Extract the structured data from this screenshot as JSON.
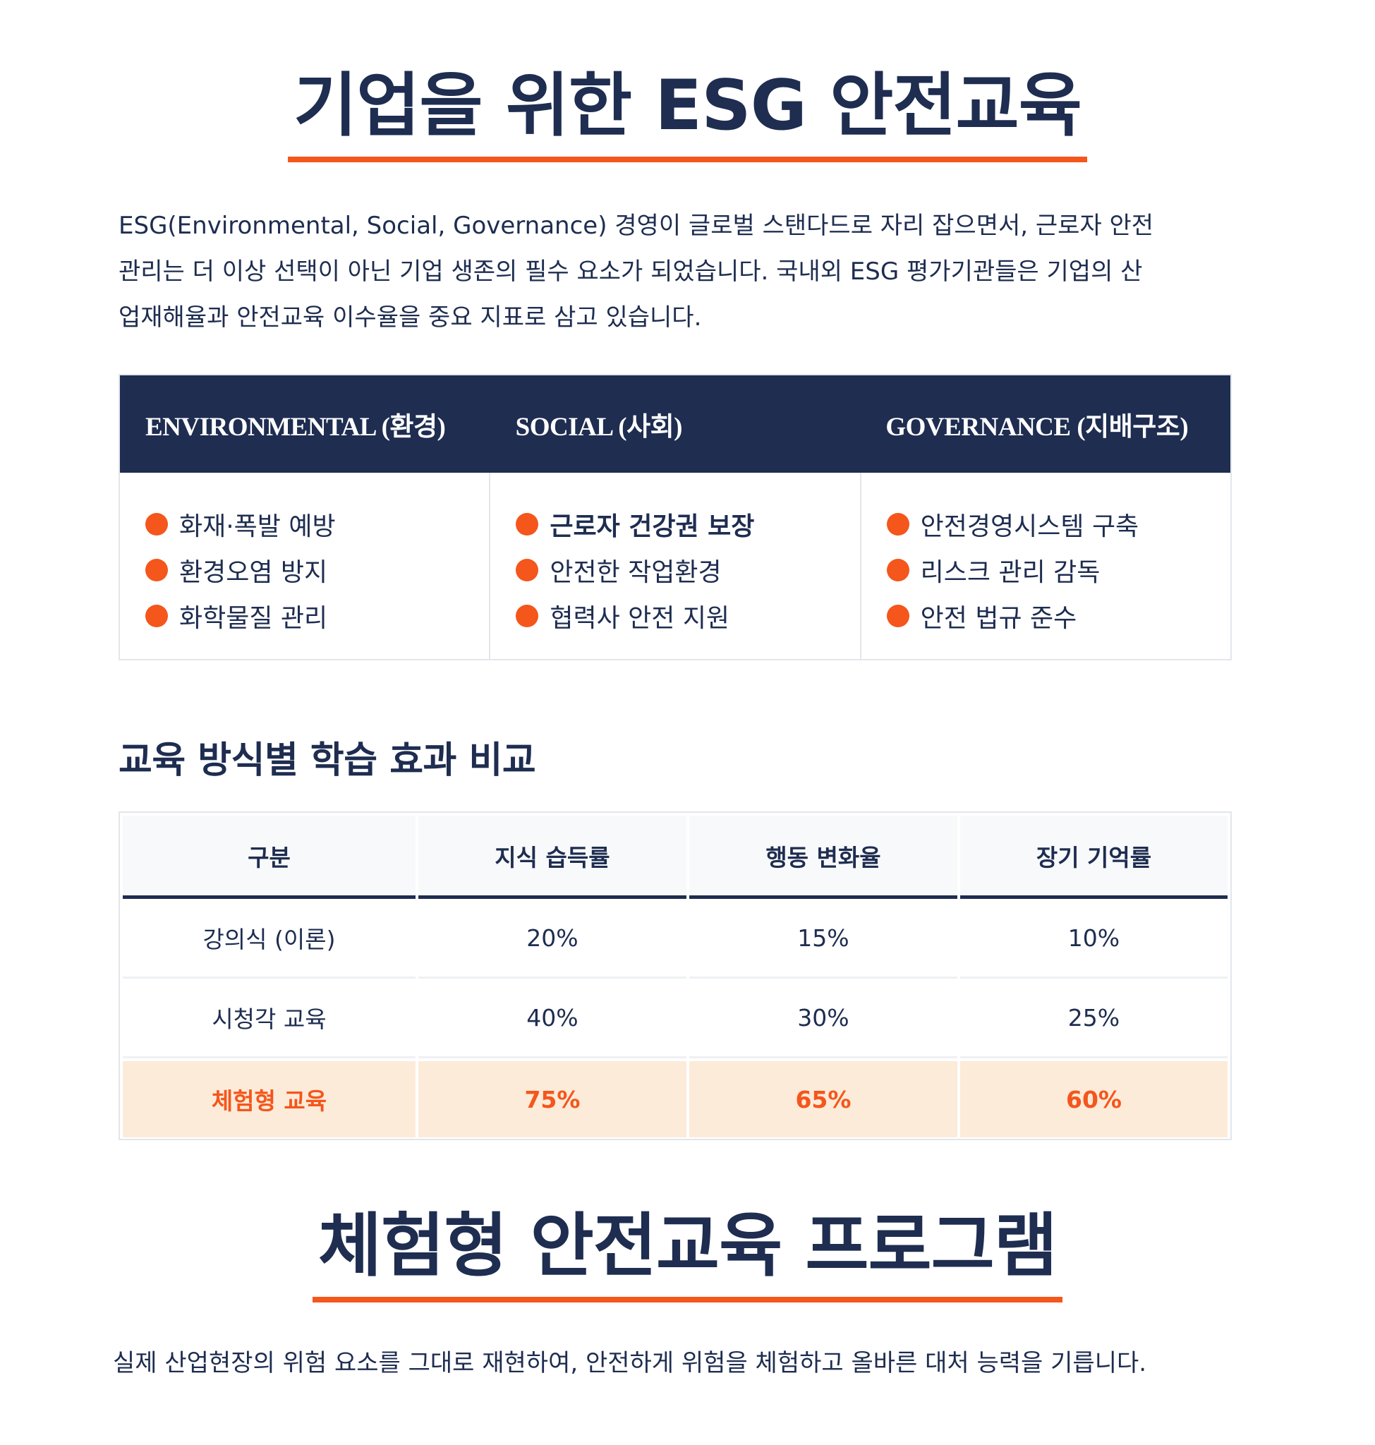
{
  "section1": {
    "title": "기업을 위한 ESG 안전교육",
    "paragraph_lines": [
      "ESG(Environmental, Social, Governance) 경영이 글로벌 스탠다드로 자리 잡으면서, 근로자 안전",
      "관리는 더 이상 선택이 아닌 기업 생존의 필수 요소가 되었습니다. 국내외 ESG 평가기관들은 기업의 산",
      "업재해율과 안전교육 이수율을 중요 지표로 삼고 있습니다."
    ]
  },
  "esg_table": {
    "columns": [
      {
        "header": "ENVIRONMENTAL (환경)",
        "items": [
          "화재·폭발 예방",
          "환경오염 방지",
          "화학물질 관리"
        ]
      },
      {
        "header": "SOCIAL (사회)",
        "items": [
          "근로자 건강권 보장",
          "안전한 작업환경",
          "협력사 안전 지원"
        ]
      },
      {
        "header": "GOVERNANCE (지배구조)",
        "items": [
          "안전경영시스템 구축",
          "리스크 관리 감독",
          "안전 법규 준수"
        ]
      }
    ]
  },
  "comparison": {
    "heading": "교육 방식별 학습 효과 비교",
    "headers": [
      "구분",
      "지식 습득률",
      "행동 변화율",
      "장기 기억률"
    ],
    "rows": [
      [
        "강의식 (이론)",
        "20%",
        "15%",
        "10%"
      ],
      [
        "시청각 교육",
        "40%",
        "30%",
        "25%"
      ],
      [
        "체험형 교육",
        "75%",
        "65%",
        "60%"
      ]
    ]
  },
  "section2": {
    "title": "체험형 안전교육 프로그램",
    "paragraph": "실제 산업현장의 위험 요소를 그대로 재현하여, 안전하게 위험을 체험하고 올바른 대처 능력을 기릅니다."
  },
  "colors": {
    "navy": "#1e2d50",
    "accent": "#f4561c",
    "highlight_bg": "#fdebd9"
  }
}
